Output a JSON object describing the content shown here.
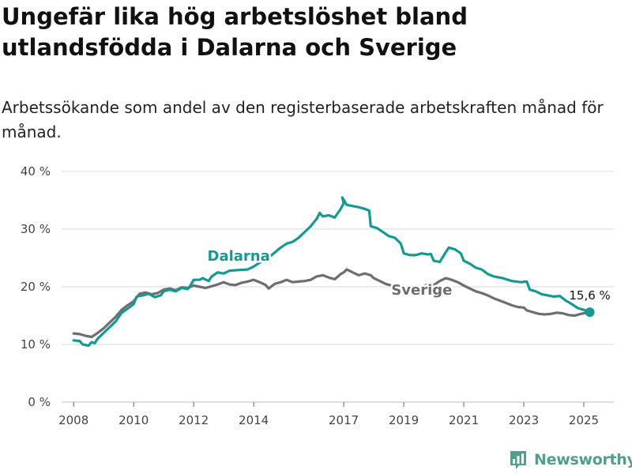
{
  "title": "Ungefär lika hög arbetslöshet bland utlandsfödda i Dalarna och Sverige",
  "subtitle": "Arbetssökande som andel av den registerbaserade arbetskraften månad för månad.",
  "brand": "Newsworthy",
  "colors": {
    "dalarna": "#159a92",
    "sverige": "#6d6d72",
    "grid": "#d9d9d9",
    "brand": "#4f9e8e"
  },
  "chart_data": {
    "type": "line",
    "title": "Ungefär lika hög arbetslöshet bland utlandsfödda i Dalarna och Sverige",
    "subtitle": "Arbetssökande som andel av den registerbaserade arbetskraften månad för månad.",
    "ylim": [
      0,
      40
    ],
    "xlim": [
      2007.6,
      2026.0
    ],
    "y_ticks": [
      0,
      10,
      20,
      30,
      40
    ],
    "y_tick_labels": [
      "0 %",
      "10 %",
      "20 %",
      "30 %",
      "40 %"
    ],
    "x_ticks": [
      2008,
      2010,
      2012,
      2014,
      2017,
      2019,
      2021,
      2023,
      2025
    ],
    "x_tick_labels": [
      "2008",
      "2010",
      "2012",
      "2014",
      "2017",
      "2019",
      "2021",
      "2023",
      "2025"
    ],
    "grid": true,
    "end_label": "15,6 %",
    "series": [
      {
        "name": "Dalarna",
        "label_at": [
          2013.5,
          24.5
        ],
        "points": [
          [
            2008.0,
            10.7
          ],
          [
            2008.2,
            10.6
          ],
          [
            2008.3,
            10.0
          ],
          [
            2008.5,
            9.8
          ],
          [
            2008.6,
            10.4
          ],
          [
            2008.7,
            10.2
          ],
          [
            2008.8,
            11.0
          ],
          [
            2009.0,
            12.0
          ],
          [
            2009.2,
            13.0
          ],
          [
            2009.4,
            14.0
          ],
          [
            2009.6,
            15.5
          ],
          [
            2009.8,
            16.2
          ],
          [
            2010.0,
            17.0
          ],
          [
            2010.1,
            18.3
          ],
          [
            2010.3,
            18.5
          ],
          [
            2010.5,
            18.8
          ],
          [
            2010.7,
            18.2
          ],
          [
            2010.9,
            18.5
          ],
          [
            2011.0,
            19.2
          ],
          [
            2011.2,
            19.5
          ],
          [
            2011.4,
            19.2
          ],
          [
            2011.6,
            19.8
          ],
          [
            2011.8,
            19.6
          ],
          [
            2011.9,
            20.3
          ],
          [
            2012.0,
            21.2
          ],
          [
            2012.2,
            21.2
          ],
          [
            2012.3,
            21.5
          ],
          [
            2012.5,
            21.0
          ],
          [
            2012.6,
            21.8
          ],
          [
            2012.8,
            22.5
          ],
          [
            2013.0,
            22.3
          ],
          [
            2013.2,
            22.8
          ],
          [
            2013.5,
            22.9
          ],
          [
            2013.8,
            23.0
          ],
          [
            2014.0,
            23.5
          ],
          [
            2014.3,
            24.5
          ],
          [
            2014.6,
            25.5
          ],
          [
            2014.9,
            26.8
          ],
          [
            2015.1,
            27.5
          ],
          [
            2015.3,
            27.8
          ],
          [
            2015.5,
            28.5
          ],
          [
            2015.7,
            29.5
          ],
          [
            2015.9,
            30.5
          ],
          [
            2016.1,
            31.8
          ],
          [
            2016.2,
            32.8
          ],
          [
            2016.3,
            32.2
          ],
          [
            2016.5,
            32.4
          ],
          [
            2016.7,
            32.0
          ],
          [
            2016.9,
            33.5
          ],
          [
            2017.0,
            34.5
          ],
          [
            2016.95,
            35.5
          ],
          [
            2017.1,
            34.2
          ],
          [
            2017.3,
            34.0
          ],
          [
            2017.5,
            33.8
          ],
          [
            2017.7,
            33.5
          ],
          [
            2017.85,
            33.2
          ],
          [
            2017.9,
            30.5
          ],
          [
            2018.1,
            30.2
          ],
          [
            2018.3,
            29.5
          ],
          [
            2018.5,
            28.8
          ],
          [
            2018.7,
            28.5
          ],
          [
            2018.9,
            27.5
          ],
          [
            2019.0,
            25.8
          ],
          [
            2019.2,
            25.5
          ],
          [
            2019.4,
            25.5
          ],
          [
            2019.6,
            25.8
          ],
          [
            2019.8,
            25.6
          ],
          [
            2019.9,
            25.7
          ],
          [
            2020.0,
            24.5
          ],
          [
            2020.2,
            24.3
          ],
          [
            2020.4,
            26.0
          ],
          [
            2020.5,
            26.8
          ],
          [
            2020.7,
            26.5
          ],
          [
            2020.9,
            25.8
          ],
          [
            2021.0,
            24.5
          ],
          [
            2021.2,
            24.0
          ],
          [
            2021.4,
            23.3
          ],
          [
            2021.6,
            23.0
          ],
          [
            2021.8,
            22.2
          ],
          [
            2022.0,
            21.8
          ],
          [
            2022.3,
            21.5
          ],
          [
            2022.6,
            21.0
          ],
          [
            2022.9,
            20.8
          ],
          [
            2023.1,
            20.9
          ],
          [
            2023.2,
            19.5
          ],
          [
            2023.4,
            19.2
          ],
          [
            2023.6,
            18.7
          ],
          [
            2023.8,
            18.5
          ],
          [
            2024.0,
            18.3
          ],
          [
            2024.2,
            18.4
          ],
          [
            2024.4,
            17.6
          ],
          [
            2024.6,
            17.0
          ],
          [
            2024.8,
            16.3
          ],
          [
            2025.0,
            16.0
          ],
          [
            2025.2,
            15.6
          ]
        ]
      },
      {
        "name": "Sverige",
        "label_at": [
          2019.6,
          18.6
        ],
        "points": [
          [
            2008.0,
            11.9
          ],
          [
            2008.2,
            11.8
          ],
          [
            2008.4,
            11.5
          ],
          [
            2008.6,
            11.3
          ],
          [
            2008.8,
            12.0
          ],
          [
            2009.0,
            12.8
          ],
          [
            2009.2,
            13.8
          ],
          [
            2009.4,
            14.8
          ],
          [
            2009.6,
            16.0
          ],
          [
            2009.8,
            16.8
          ],
          [
            2010.0,
            17.5
          ],
          [
            2010.2,
            18.8
          ],
          [
            2010.4,
            19.0
          ],
          [
            2010.6,
            18.7
          ],
          [
            2010.8,
            18.9
          ],
          [
            2011.0,
            19.5
          ],
          [
            2011.2,
            19.7
          ],
          [
            2011.4,
            19.4
          ],
          [
            2011.6,
            19.9
          ],
          [
            2011.8,
            19.8
          ],
          [
            2012.0,
            20.2
          ],
          [
            2012.2,
            20.0
          ],
          [
            2012.4,
            19.8
          ],
          [
            2012.6,
            20.1
          ],
          [
            2012.8,
            20.4
          ],
          [
            2013.0,
            20.8
          ],
          [
            2013.2,
            20.4
          ],
          [
            2013.4,
            20.3
          ],
          [
            2013.6,
            20.7
          ],
          [
            2013.8,
            20.9
          ],
          [
            2014.0,
            21.2
          ],
          [
            2014.2,
            20.8
          ],
          [
            2014.4,
            20.3
          ],
          [
            2014.5,
            19.7
          ],
          [
            2014.7,
            20.5
          ],
          [
            2014.9,
            20.8
          ],
          [
            2015.1,
            21.2
          ],
          [
            2015.3,
            20.8
          ],
          [
            2015.5,
            20.9
          ],
          [
            2015.7,
            21.0
          ],
          [
            2015.9,
            21.2
          ],
          [
            2016.1,
            21.8
          ],
          [
            2016.3,
            22.0
          ],
          [
            2016.5,
            21.6
          ],
          [
            2016.7,
            21.3
          ],
          [
            2016.9,
            22.2
          ],
          [
            2017.0,
            22.5
          ],
          [
            2017.1,
            23.0
          ],
          [
            2017.3,
            22.5
          ],
          [
            2017.5,
            22.0
          ],
          [
            2017.7,
            22.3
          ],
          [
            2017.9,
            22.0
          ],
          [
            2018.0,
            21.5
          ],
          [
            2018.2,
            21.0
          ],
          [
            2018.4,
            20.5
          ],
          [
            2018.6,
            20.2
          ],
          [
            2018.8,
            20.0
          ],
          [
            2019.0,
            19.8
          ],
          [
            2019.2,
            19.5
          ],
          [
            2019.4,
            19.6
          ],
          [
            2019.6,
            20.0
          ],
          [
            2019.8,
            20.4
          ],
          [
            2020.0,
            20.3
          ],
          [
            2020.2,
            21.0
          ],
          [
            2020.4,
            21.5
          ],
          [
            2020.6,
            21.2
          ],
          [
            2020.8,
            20.8
          ],
          [
            2021.0,
            20.2
          ],
          [
            2021.2,
            19.7
          ],
          [
            2021.4,
            19.2
          ],
          [
            2021.6,
            18.9
          ],
          [
            2021.8,
            18.5
          ],
          [
            2022.0,
            18.0
          ],
          [
            2022.2,
            17.6
          ],
          [
            2022.4,
            17.2
          ],
          [
            2022.6,
            16.8
          ],
          [
            2022.8,
            16.5
          ],
          [
            2023.0,
            16.4
          ],
          [
            2023.1,
            15.9
          ],
          [
            2023.3,
            15.6
          ],
          [
            2023.5,
            15.3
          ],
          [
            2023.7,
            15.2
          ],
          [
            2023.9,
            15.3
          ],
          [
            2024.1,
            15.5
          ],
          [
            2024.3,
            15.4
          ],
          [
            2024.5,
            15.1
          ],
          [
            2024.7,
            15.0
          ],
          [
            2024.9,
            15.3
          ],
          [
            2025.1,
            15.5
          ],
          [
            2025.2,
            15.6
          ]
        ]
      }
    ]
  }
}
